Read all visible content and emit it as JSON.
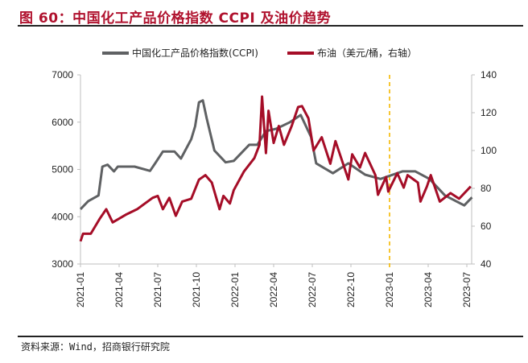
{
  "title": "图 60：中国化工产品价格指数 CCPI 及油价趋势",
  "source": "资料来源：Wind，招商银行研究院",
  "chart_data": {
    "type": "line",
    "title": "图 60：中国化工产品价格指数 CCPI 及油价趋势",
    "x_ticks": [
      "2021-01",
      "2021-04",
      "2021-07",
      "2021-10",
      "2022-01",
      "2022-04",
      "2022-07",
      "2022-10",
      "2023-01",
      "2023-04",
      "2023-07"
    ],
    "y_left": {
      "lim": [
        3000,
        7000
      ],
      "ticks": [
        "3000",
        "4000",
        "5000",
        "6000",
        "7000"
      ]
    },
    "y_right": {
      "lim": [
        40,
        140
      ],
      "ticks": [
        "40",
        "60",
        "80",
        "100",
        "120",
        "140"
      ]
    },
    "grid": false,
    "legend": "top",
    "reference_line": {
      "x": "2023-01",
      "style": "dashed",
      "color": "#f5b800"
    },
    "series": [
      {
        "name": "中国化工产品价格指数(CCPI)",
        "axis": "left",
        "color": "#5f6163",
        "points": [
          [
            "2021-01-01",
            4160
          ],
          [
            "2021-01-19",
            4330
          ],
          [
            "2021-02-13",
            4450
          ],
          [
            "2021-02-22",
            5060
          ],
          [
            "2021-03-04",
            5100
          ],
          [
            "2021-03-19",
            4960
          ],
          [
            "2021-03-28",
            5060
          ],
          [
            "2021-05-07",
            5060
          ],
          [
            "2021-06-13",
            4970
          ],
          [
            "2021-06-25",
            5130
          ],
          [
            "2021-07-13",
            5380
          ],
          [
            "2021-08-10",
            5380
          ],
          [
            "2021-08-25",
            5230
          ],
          [
            "2021-09-19",
            5640
          ],
          [
            "2021-09-28",
            5910
          ],
          [
            "2021-10-07",
            6420
          ],
          [
            "2021-10-16",
            6460
          ],
          [
            "2021-10-25",
            6080
          ],
          [
            "2021-11-13",
            5400
          ],
          [
            "2021-12-09",
            5150
          ],
          [
            "2021-12-28",
            5180
          ],
          [
            "2022-01-16",
            5350
          ],
          [
            "2022-02-04",
            5520
          ],
          [
            "2022-02-23",
            5520
          ],
          [
            "2022-03-13",
            5810
          ],
          [
            "2022-04-07",
            5860
          ],
          [
            "2022-05-09",
            6000
          ],
          [
            "2022-06-04",
            6150
          ],
          [
            "2022-06-28",
            5690
          ],
          [
            "2022-07-10",
            5130
          ],
          [
            "2022-08-19",
            4920
          ],
          [
            "2022-09-25",
            5130
          ],
          [
            "2022-11-04",
            4890
          ],
          [
            "2022-12-10",
            4800
          ],
          [
            "2023-02-01",
            4960
          ],
          [
            "2023-03-01",
            4960
          ],
          [
            "2023-04-04",
            4800
          ],
          [
            "2023-05-10",
            4450
          ],
          [
            "2023-06-25",
            4240
          ],
          [
            "2023-07-13",
            4410
          ]
        ]
      },
      {
        "name": "布油（美元/桶，右轴）",
        "axis": "right",
        "color": "#a50d27",
        "points": [
          [
            "2021-01-01",
            52
          ],
          [
            "2021-01-07",
            56
          ],
          [
            "2021-01-25",
            56
          ],
          [
            "2021-02-16",
            64
          ],
          [
            "2021-03-01",
            69
          ],
          [
            "2021-03-16",
            62
          ],
          [
            "2021-04-16",
            66
          ],
          [
            "2021-05-13",
            69
          ],
          [
            "2021-06-19",
            75
          ],
          [
            "2021-07-01",
            76
          ],
          [
            "2021-07-13",
            69
          ],
          [
            "2021-07-28",
            75
          ],
          [
            "2021-08-13",
            65.5
          ],
          [
            "2021-08-28",
            73
          ],
          [
            "2021-09-19",
            74.5
          ],
          [
            "2021-10-07",
            84.6
          ],
          [
            "2021-10-22",
            87
          ],
          [
            "2021-11-07",
            83
          ],
          [
            "2021-11-25",
            69
          ],
          [
            "2021-12-04",
            76
          ],
          [
            "2021-12-19",
            72
          ],
          [
            "2021-12-28",
            79
          ],
          [
            "2022-01-22",
            89
          ],
          [
            "2022-02-16",
            96
          ],
          [
            "2022-02-28",
            103
          ],
          [
            "2022-03-04",
            128.5
          ],
          [
            "2022-03-13",
            98.7
          ],
          [
            "2022-03-19",
            121
          ],
          [
            "2022-04-01",
            104
          ],
          [
            "2022-04-13",
            113
          ],
          [
            "2022-04-25",
            103
          ],
          [
            "2022-05-13",
            113
          ],
          [
            "2022-05-28",
            123
          ],
          [
            "2022-06-07",
            123.5
          ],
          [
            "2022-06-22",
            117
          ],
          [
            "2022-07-04",
            100
          ],
          [
            "2022-07-23",
            107
          ],
          [
            "2022-08-13",
            93
          ],
          [
            "2022-08-25",
            105
          ],
          [
            "2022-09-25",
            84.7
          ],
          [
            "2022-10-04",
            98
          ],
          [
            "2022-10-22",
            91
          ],
          [
            "2022-11-04",
            98.7
          ],
          [
            "2022-11-28",
            87
          ],
          [
            "2022-12-04",
            76.6
          ],
          [
            "2022-12-23",
            86
          ],
          [
            "2022-12-28",
            78.3
          ],
          [
            "2023-01-19",
            88
          ],
          [
            "2023-02-04",
            80.4
          ],
          [
            "2023-02-13",
            87
          ],
          [
            "2023-03-07",
            83
          ],
          [
            "2023-03-13",
            73
          ],
          [
            "2023-03-28",
            81
          ],
          [
            "2023-04-07",
            87
          ],
          [
            "2023-04-28",
            73
          ],
          [
            "2023-05-23",
            77.5
          ],
          [
            "2023-06-13",
            74.5
          ],
          [
            "2023-07-10",
            81
          ]
        ]
      }
    ]
  }
}
